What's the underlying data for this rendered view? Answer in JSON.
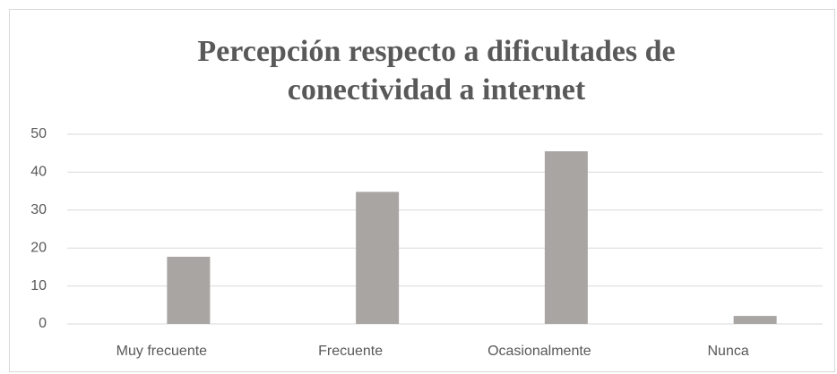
{
  "chart_data": {
    "type": "bar",
    "title": "Percepción respecto a dificultades de conectividad a internet",
    "categories": [
      "Muy frecuente",
      "Frecuente",
      "Ocasionalmente",
      "Nunca"
    ],
    "values": [
      17.7,
      34.8,
      45.5,
      2.1
    ],
    "color": "#a9a5a3",
    "ylim": [
      0,
      50
    ],
    "yticks": [
      0,
      10,
      20,
      30,
      40,
      50
    ],
    "grid": true
  }
}
